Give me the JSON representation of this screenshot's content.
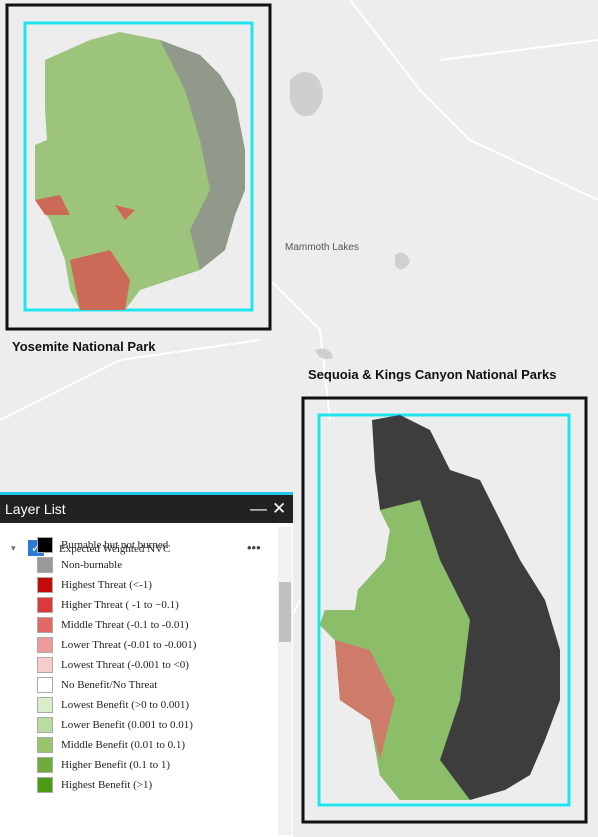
{
  "map": {
    "labels": {
      "yosemite": "Yosemite National Park",
      "sequoia": "Sequoia & Kings Canyon National Parks",
      "town": "Mammoth Lakes"
    }
  },
  "layer_list": {
    "title": "Layer List",
    "layer": {
      "name": "Expected Weighted NVC",
      "legend": [
        {
          "label": "Burnable but not burned",
          "color": "#000000"
        },
        {
          "label": "Non-burnable",
          "color": "#999999"
        },
        {
          "label": "Highest Threat (<-1)",
          "color": "#c40a0a"
        },
        {
          "label": "Higher Threat ( -1 to −0.1)",
          "color": "#dc3a3a"
        },
        {
          "label": "Middle Threat (-0.1 to -0.01)",
          "color": "#e26868"
        },
        {
          "label": "Lower Threat (-0.01 to -0.001)",
          "color": "#ec9a9a"
        },
        {
          "label": "Lowest Threat (-0.001 to <0)",
          "color": "#f6cccc"
        },
        {
          "label": "No Benefit/No Threat",
          "color": "#ffffff"
        },
        {
          "label": "Lowest Benefit (>0 to 0.001)",
          "color": "#dcedcc"
        },
        {
          "label": "Lower Benefit (0.001 to 0.01)",
          "color": "#badba2"
        },
        {
          "label": "Middle Benefit (0.01 to 0.1)",
          "color": "#99c56f"
        },
        {
          "label": "Higher Benefit (0.1 to 1)",
          "color": "#6eaa3c"
        },
        {
          "label": "Highest Benefit (>1)",
          "color": "#4b9a14"
        }
      ]
    }
  }
}
